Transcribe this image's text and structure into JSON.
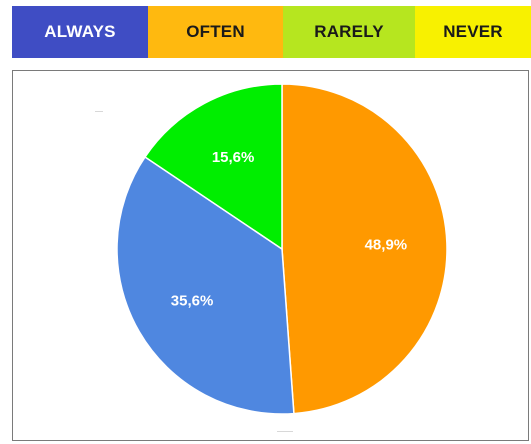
{
  "legend": {
    "items": [
      {
        "label": "ALWAYS",
        "color": "#3f4dc4"
      },
      {
        "label": "OFTEN",
        "color": "#ffb90f"
      },
      {
        "label": "RARELY",
        "color": "#b6e61f"
      },
      {
        "label": "NEVER",
        "color": "#f8f100"
      }
    ]
  },
  "chart_data": {
    "type": "pie",
    "title": "",
    "start_angle_deg": 0,
    "direction": "clockwise",
    "legend_placement": "top",
    "slices": [
      {
        "value": 48.9,
        "label": "48,9%",
        "color": "#ff9900"
      },
      {
        "value": 35.6,
        "label": "35,6%",
        "color": "#4f87e0"
      },
      {
        "value": 15.6,
        "label": "15,6%",
        "color": "#00ee00"
      }
    ]
  }
}
